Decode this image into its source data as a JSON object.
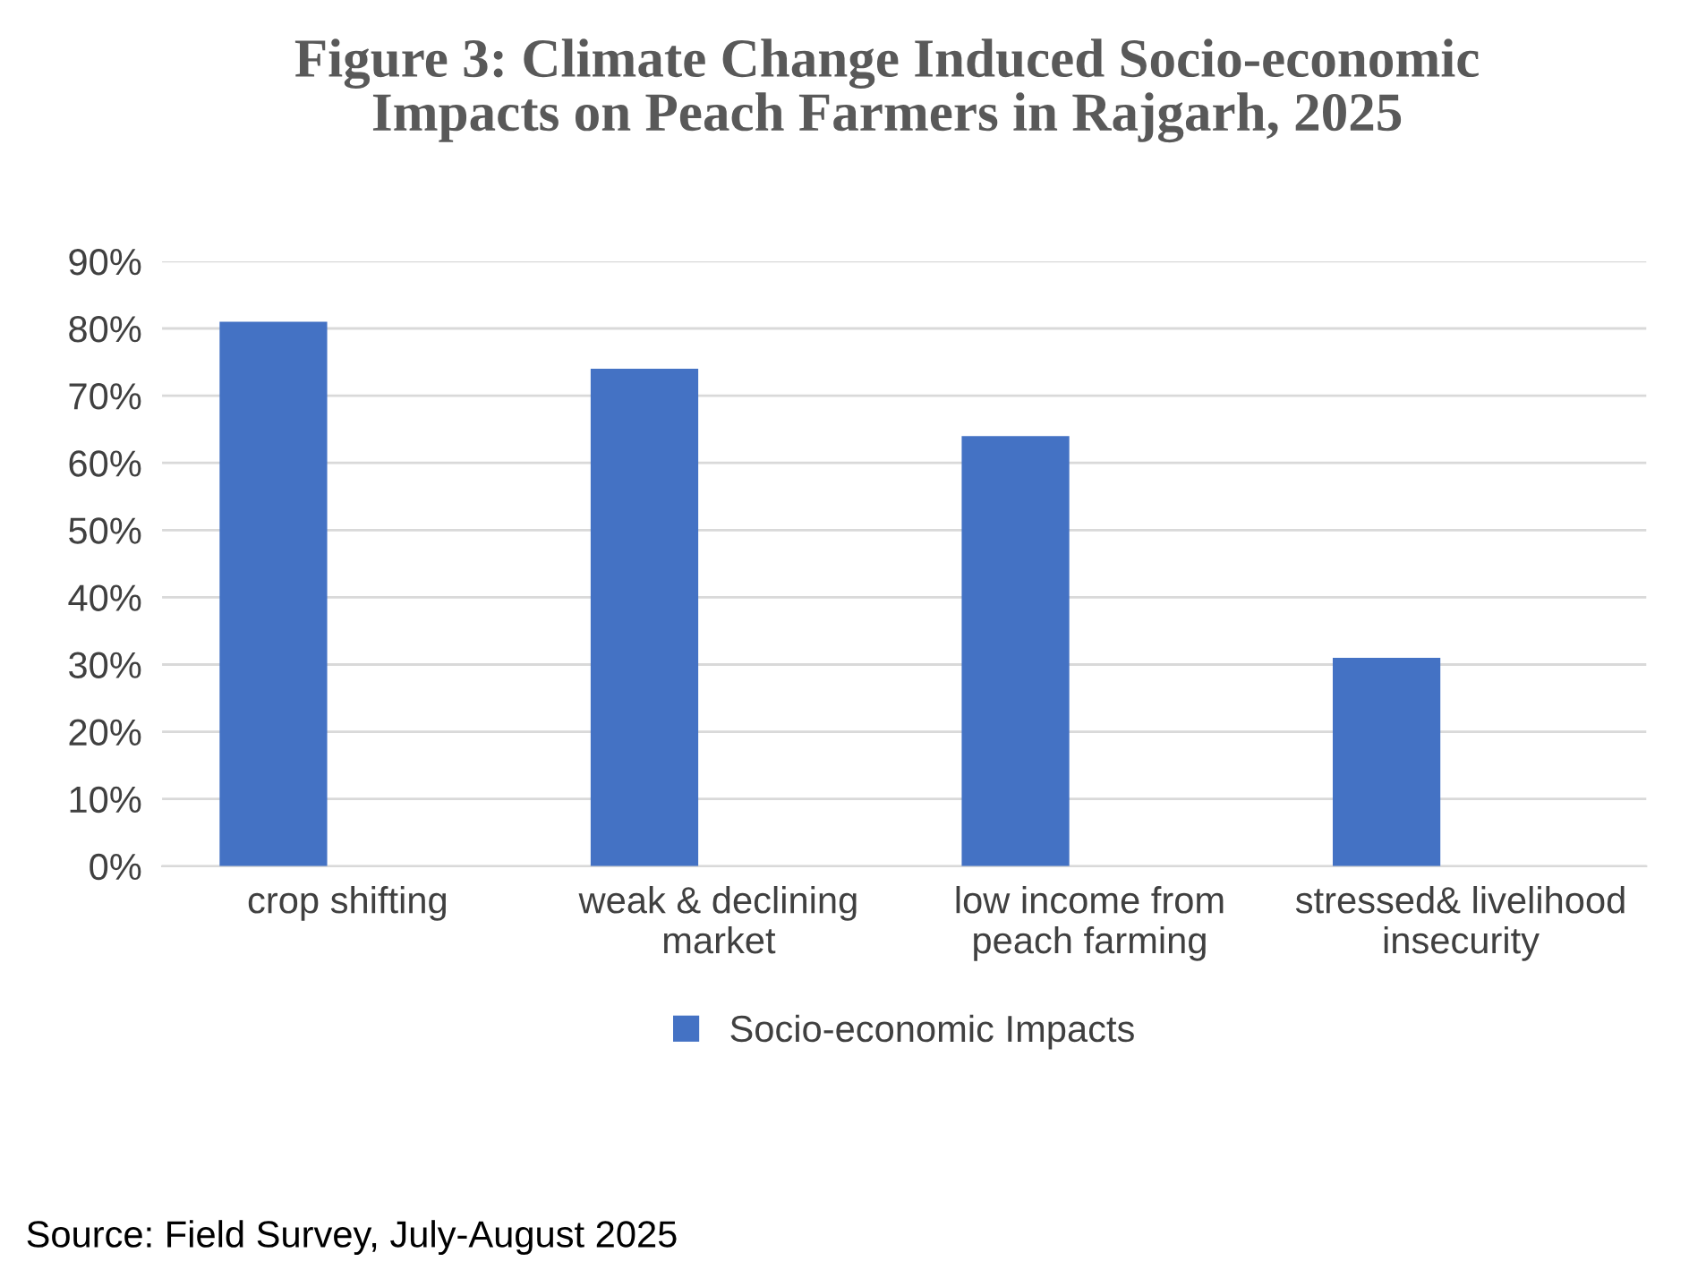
{
  "chart_data": {
    "type": "bar",
    "title": "Figure 3: Climate Change Induced Socio-economic\nImpacts on Peach Farmers in Rajgarh, 2025",
    "categories": [
      "crop shifting",
      "weak & declining\nmarket",
      "low income from\npeach farming",
      "stressed& livelihood\ninsecurity"
    ],
    "series": [
      {
        "name": "Socio-economic Impacts",
        "color": "#4472c4",
        "values": [
          81,
          74,
          64,
          31
        ]
      }
    ],
    "ylim": [
      0,
      90
    ],
    "yticks": [
      {
        "value": 0,
        "label": "0%"
      },
      {
        "value": 10,
        "label": "10%"
      },
      {
        "value": 20,
        "label": "20%"
      },
      {
        "value": 30,
        "label": "30%"
      },
      {
        "value": 40,
        "label": "40%"
      },
      {
        "value": 50,
        "label": "50%"
      },
      {
        "value": 60,
        "label": "60%"
      },
      {
        "value": 70,
        "label": "70%"
      },
      {
        "value": 80,
        "label": "80%"
      },
      {
        "value": 90,
        "label": "90%"
      }
    ],
    "grid": "y",
    "legend": "bottom",
    "annotations": [
      "Source: Field Survey, July-August 2025"
    ]
  }
}
